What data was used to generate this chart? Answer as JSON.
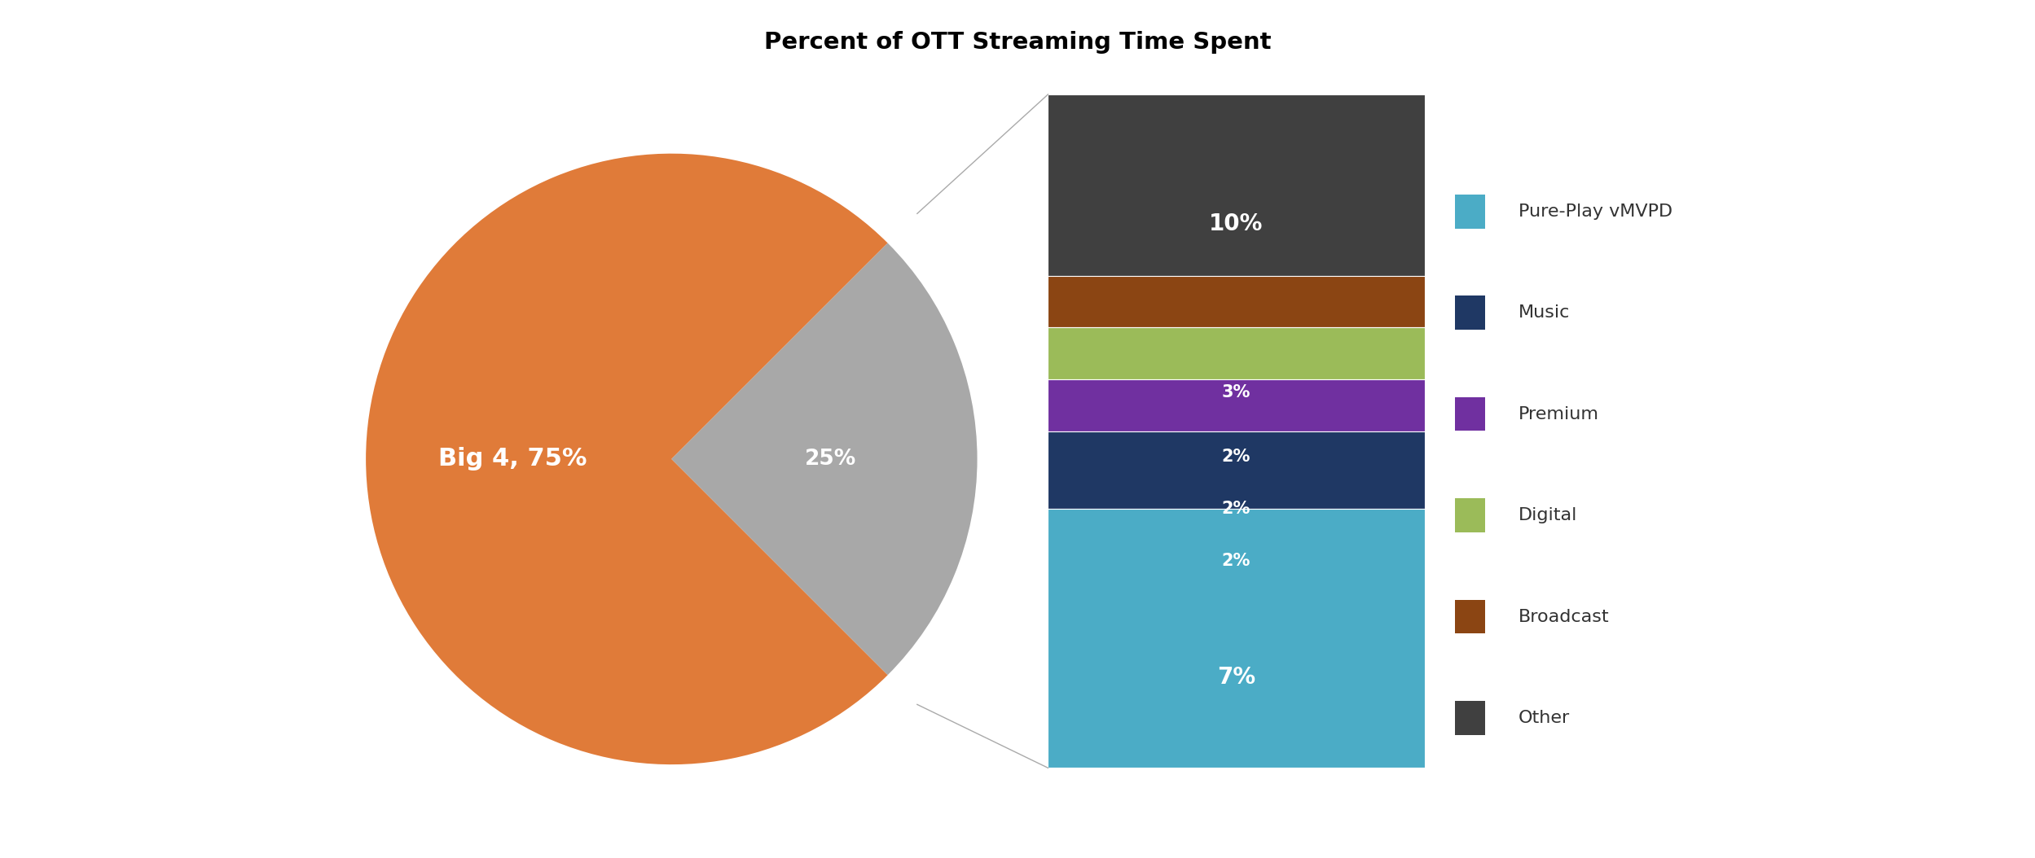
{
  "title": "Percent of OTT Streaming Time Spent",
  "title_fontsize": 21,
  "title_bg_color": "#e0e0e0",
  "big4_pct": 75,
  "big4_label": "Big 4, 75%",
  "big4_color": "#E07B39",
  "other25_pct": 25,
  "other25_label": "25%",
  "other25_color": "#A8A8A8",
  "breakdown": [
    {
      "label": "Pure-Play vMVPD",
      "pct": 10,
      "color": "#4BACC6"
    },
    {
      "label": "Music",
      "pct": 3,
      "color": "#1F3864"
    },
    {
      "label": "Premium",
      "pct": 2,
      "color": "#7030A0"
    },
    {
      "label": "Digital",
      "pct": 2,
      "color": "#9BBB59"
    },
    {
      "label": "Broadcast",
      "pct": 2,
      "color": "#8B4513"
    },
    {
      "label": "Other",
      "pct": 7,
      "color": "#404040"
    }
  ],
  "bg_color": "#ffffff",
  "legend_fontsize": 16,
  "label_fontsize": 19,
  "bar_label_fontsize_large": 20,
  "bar_label_fontsize_small": 15
}
